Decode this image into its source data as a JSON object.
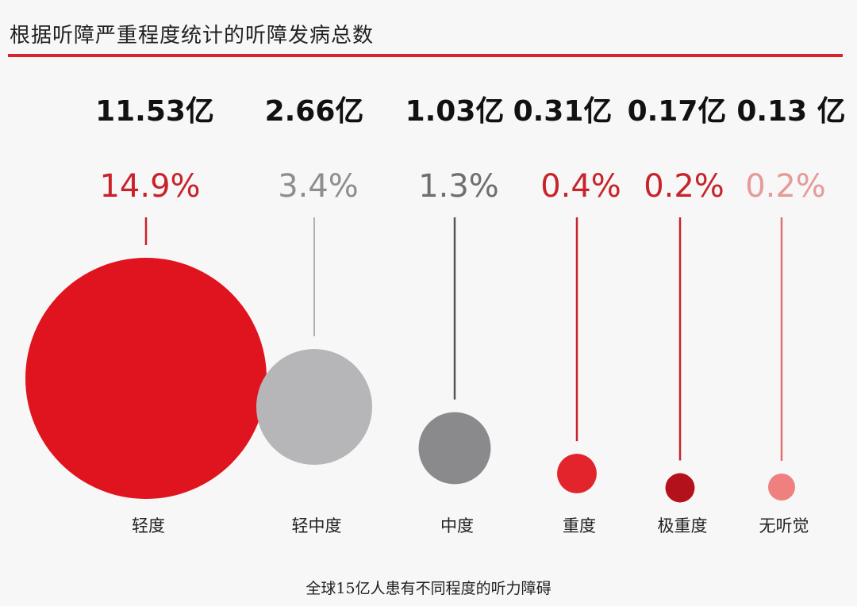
{
  "title": "根据听障严重程度统计的听障发病总数",
  "caption": "全球15亿人患有不同程度的听力障碍",
  "chart_data": {
    "type": "bubble",
    "title": "根据听障严重程度统计的听障发病总数",
    "categories": [
      "轻度",
      "轻中度",
      "中度",
      "重度",
      "极重度",
      "无听觉"
    ],
    "counts_yi": [
      11.53,
      2.66,
      1.03,
      0.31,
      0.17,
      0.13
    ],
    "count_labels": [
      "11.53亿",
      "2.66亿",
      "1.03亿",
      "0.31亿",
      "0.17亿",
      "0.13 亿"
    ],
    "percent": [
      14.9,
      3.4,
      1.3,
      0.4,
      0.2,
      0.2
    ],
    "percent_labels": [
      "14.9%",
      "3.4%",
      "1.3%",
      "0.4%",
      "0.2%",
      "0.2%"
    ],
    "colors": [
      "#e0141e",
      "#b6b6b8",
      "#8a8a8c",
      "#e2252c",
      "#b3121a",
      "#f08080"
    ],
    "percent_colors": [
      "#c8232a",
      "#8e8e8e",
      "#6f6f6f",
      "#c8232a",
      "#c8232a",
      "#e69a9a"
    ],
    "leader_colors": [
      "#c8232a",
      "#9a9a9a",
      "#555555",
      "#c8232a",
      "#c8232a",
      "#e07070"
    ]
  }
}
